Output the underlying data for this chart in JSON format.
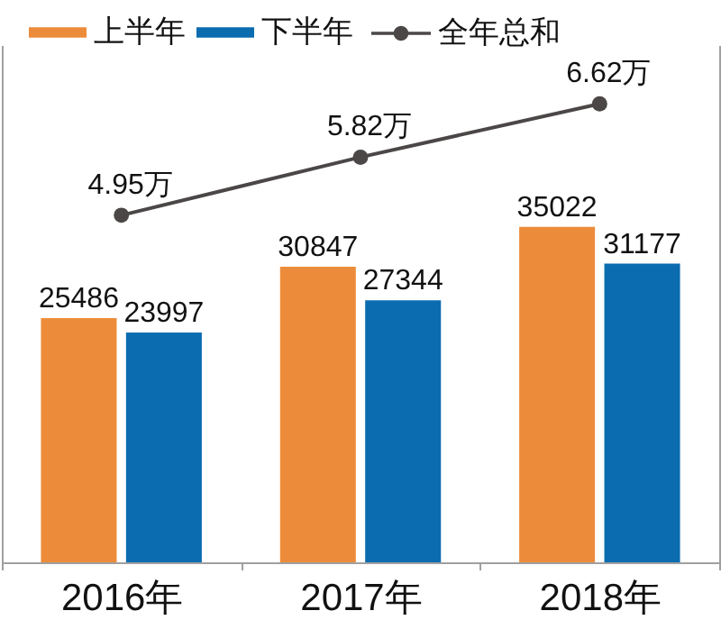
{
  "chart_data": {
    "type": "bar",
    "categories": [
      "2016年",
      "2017年",
      "2018年"
    ],
    "series": [
      {
        "name": "上半年",
        "color": "#ec8c3a",
        "values": [
          25486,
          30847,
          35022
        ]
      },
      {
        "name": "下半年",
        "color": "#0b6cb0",
        "values": [
          23997,
          27344,
          31177
        ]
      },
      {
        "name": "全年总和",
        "type": "line",
        "axis": "y2",
        "color": "#4b4747",
        "marker": "circle",
        "values": [
          4.95,
          5.82,
          6.62
        ],
        "value_labels": [
          "4.95万",
          "5.82万",
          "6.62万"
        ]
      }
    ],
    "ylim": [
      0,
      54000
    ],
    "y2lim": [
      -0.25,
      7.5
    ],
    "data_labels": true,
    "legend": "top",
    "tick_labels": "x"
  }
}
